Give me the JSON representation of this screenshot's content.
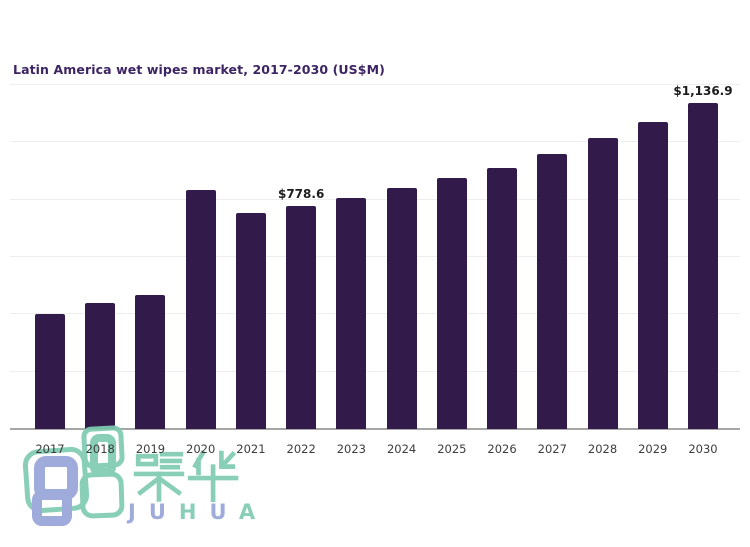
{
  "title": {
    "text": "Latin America wet wipes market, 2017-2030 (US$M)",
    "color": "#3d2462"
  },
  "chart_data": {
    "type": "bar",
    "title": "Latin America wet wipes market, 2017-2030 (US$M)",
    "categories": [
      "2017",
      "2018",
      "2019",
      "2020",
      "2021",
      "2022",
      "2023",
      "2024",
      "2025",
      "2026",
      "2027",
      "2028",
      "2029",
      "2030"
    ],
    "values": [
      401,
      440,
      468,
      834,
      754,
      778.6,
      806,
      841,
      876,
      912,
      960,
      1015,
      1071,
      1136.9
    ],
    "data_labels": [
      "",
      "",
      "",
      "",
      "",
      "$778.6",
      "",
      "",
      "",
      "",
      "",
      "",
      "",
      "$1,136.9"
    ],
    "xlabel": "",
    "ylabel": "",
    "ylim": [
      0,
      1200
    ],
    "gridline_interval": 200,
    "grid": true,
    "legend": "none",
    "bar_color": "#321a4b",
    "gridline_color": "#eeeeee",
    "axis_line_color": "#a6a6a6",
    "tick_label_color": "#3c3c3c",
    "data_label_color": "#1c1c1c"
  },
  "watermark": {
    "cjk_text": "聚华",
    "latin_letters": [
      {
        "ch": "J",
        "color": "#97a5d8"
      },
      {
        "ch": "U",
        "color": "#97a5d8"
      },
      {
        "ch": "H",
        "color": "#7fccb1"
      },
      {
        "ch": "U",
        "color": "#97a5d8"
      },
      {
        "ch": "A",
        "color": "#7fccb1"
      }
    ],
    "green": "#7fccb1",
    "blue": "#97a5d8"
  }
}
